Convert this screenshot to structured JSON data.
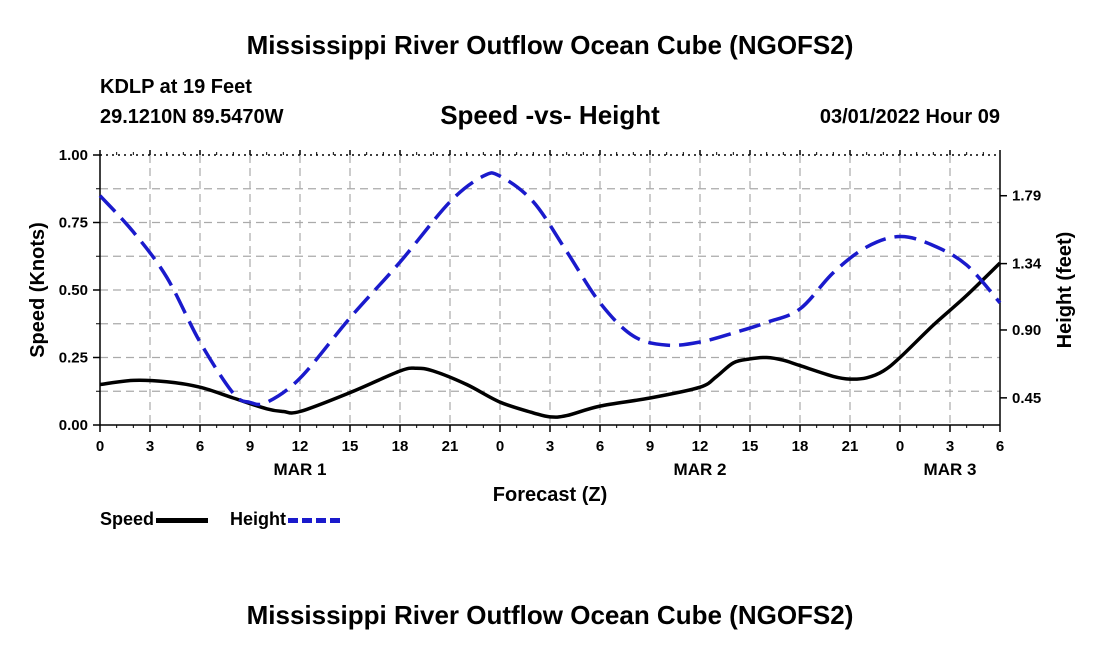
{
  "header": {
    "title": "Mississippi River Outflow Ocean Cube (NGOFS2)",
    "station": "KDLP at 19 Feet",
    "location": "29.1210N  89.5470W",
    "date": "03/01/2022 Hour 09"
  },
  "footer": {
    "title": "Mississippi River Outflow Ocean Cube (NGOFS2)"
  },
  "legend": {
    "speed_label": "Speed",
    "height_label": "Height"
  },
  "colors": {
    "speed": "#000000",
    "height": "#1a1acc",
    "grid": "#aaaaaa"
  },
  "chart_data": {
    "type": "line",
    "title": "Speed -vs- Height",
    "xlabel": "Forecast (Z)",
    "ylabel": "Speed (Knots)",
    "y2label": "Height (feet)",
    "x_unit": "hours from 00Z Mar 1",
    "xlim": [
      0,
      54
    ],
    "ylim": [
      0,
      1.0
    ],
    "y2lim": [
      0.27,
      2.06
    ],
    "x_ticks": [
      0,
      3,
      6,
      9,
      12,
      15,
      18,
      21,
      24,
      27,
      30,
      33,
      36,
      39,
      42,
      45,
      48,
      51,
      54
    ],
    "x_tick_labels": [
      "0",
      "3",
      "6",
      "9",
      "12",
      "15",
      "18",
      "21",
      "0",
      "3",
      "6",
      "9",
      "12",
      "15",
      "18",
      "21",
      "0",
      "3",
      "6"
    ],
    "y_ticks": [
      0,
      0.25,
      0.5,
      0.75,
      1.0
    ],
    "y_tick_labels": [
      "0.00",
      "0.25",
      "0.50",
      "0.75",
      "1.00"
    ],
    "y2_ticks": [
      0.45,
      0.9,
      1.34,
      1.79
    ],
    "y2_tick_labels": [
      "0.45",
      "0.90",
      "1.34",
      "1.79"
    ],
    "day_labels": [
      {
        "x": 12,
        "label": "MAR 1"
      },
      {
        "x": 36,
        "label": "MAR 2"
      },
      {
        "x": 51,
        "label": "MAR 3"
      }
    ],
    "series": [
      {
        "name": "Speed",
        "axis": "left",
        "style": "solid",
        "x": [
          0,
          2,
          4,
          6,
          8,
          10,
          11,
          12,
          15,
          18,
          19,
          20,
          22,
          24,
          26,
          27,
          28,
          30,
          33,
          36,
          37,
          38,
          39,
          40,
          41,
          42,
          44,
          45,
          46,
          47,
          48,
          50,
          52,
          54
        ],
        "values": [
          0.15,
          0.165,
          0.16,
          0.14,
          0.1,
          0.06,
          0.05,
          0.05,
          0.12,
          0.2,
          0.21,
          0.2,
          0.15,
          0.085,
          0.045,
          0.03,
          0.035,
          0.07,
          0.1,
          0.14,
          0.18,
          0.23,
          0.245,
          0.25,
          0.24,
          0.22,
          0.18,
          0.17,
          0.175,
          0.2,
          0.25,
          0.37,
          0.48,
          0.6
        ]
      },
      {
        "name": "Height",
        "axis": "right",
        "style": "dashed",
        "x": [
          0,
          2,
          4,
          6,
          8,
          9,
          10,
          12,
          15,
          18,
          21,
          23,
          24,
          26,
          28,
          30,
          32,
          34,
          36,
          38,
          40,
          42,
          44,
          46,
          48,
          50,
          52,
          54
        ],
        "values": [
          1.79,
          1.55,
          1.25,
          0.82,
          0.48,
          0.42,
          0.42,
          0.58,
          0.98,
          1.35,
          1.75,
          1.92,
          1.92,
          1.75,
          1.42,
          1.08,
          0.86,
          0.8,
          0.82,
          0.88,
          0.95,
          1.04,
          1.28,
          1.45,
          1.52,
          1.46,
          1.33,
          1.08
        ]
      }
    ]
  }
}
